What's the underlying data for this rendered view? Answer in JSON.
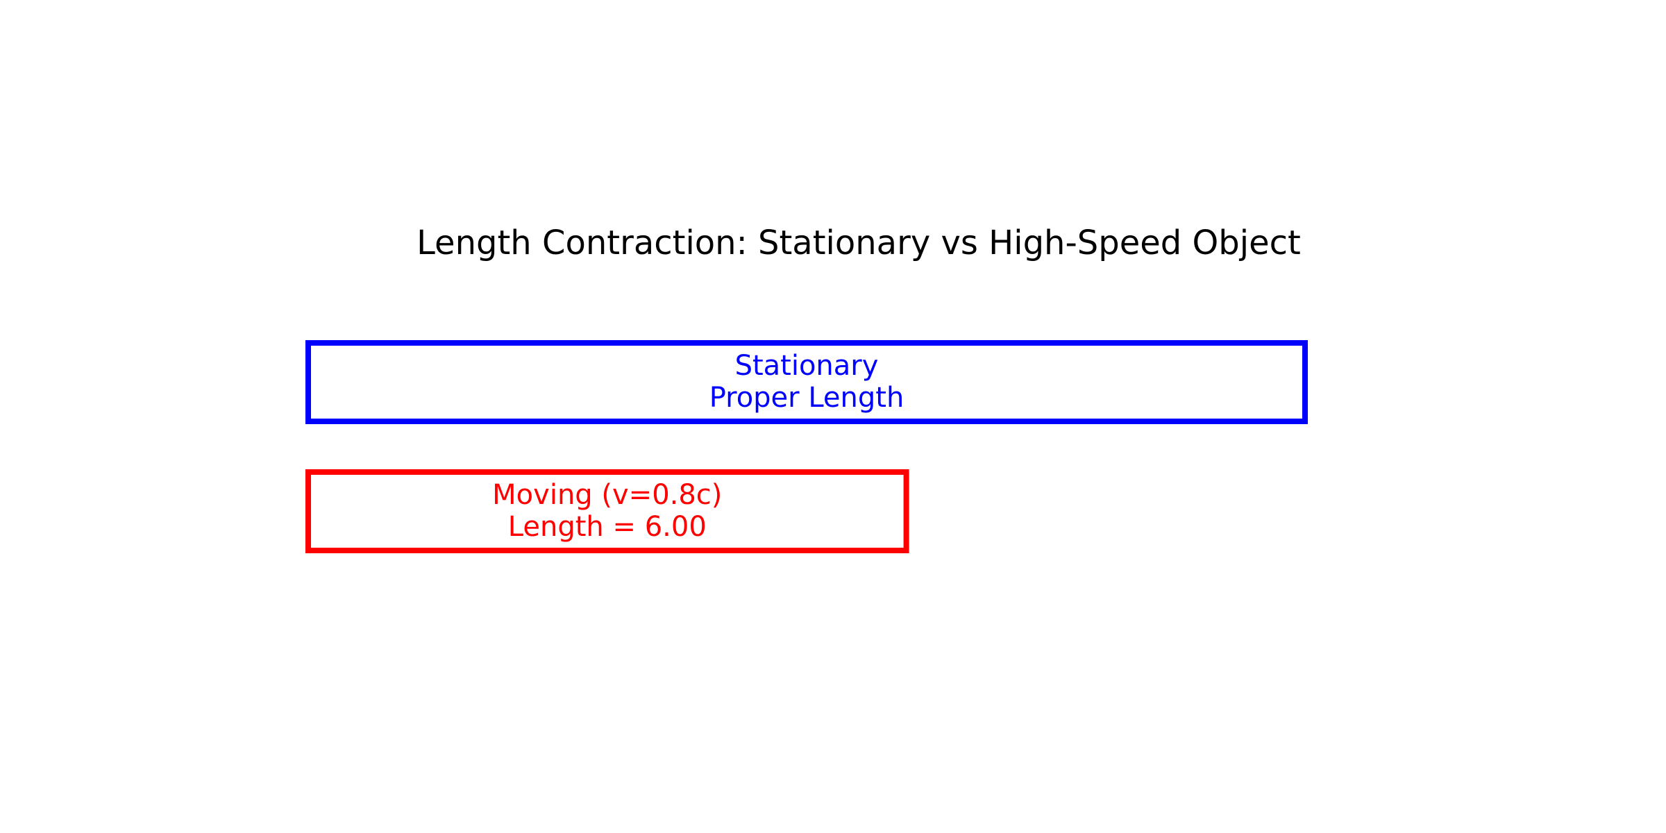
{
  "title": "Length Contraction: Stationary vs High-Speed Object",
  "boxes": [
    {
      "id": "stationary",
      "line1": "Stationary",
      "line2": "Proper Length",
      "color": "#0000ff",
      "length": 10.0
    },
    {
      "id": "moving",
      "line1": "Moving (v=0.8c)",
      "line2": "Length = 6.00",
      "color": "#ff0000",
      "length": 6.0
    }
  ]
}
